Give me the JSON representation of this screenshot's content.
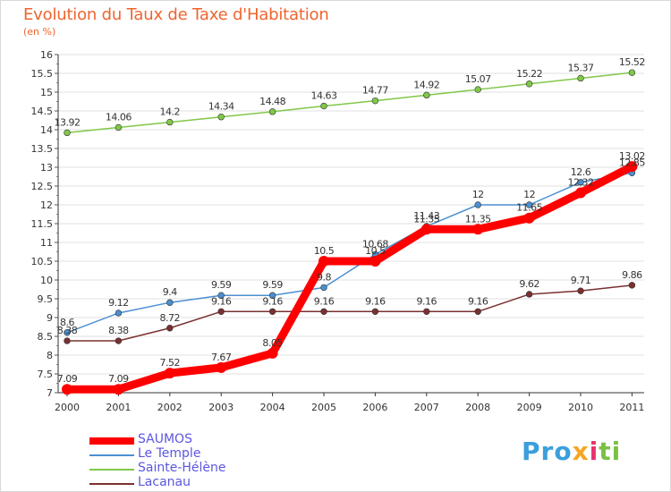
{
  "title": "Evolution du Taux de Taxe d'Habitation",
  "subtitle": "(en %)",
  "logo": {
    "p1": "Pro",
    "p2": "x",
    "p3": "i",
    "p4": "ti"
  },
  "chart_data": {
    "type": "line",
    "title": "Evolution du Taux de Taxe d'Habitation",
    "ylabel": "(en %)",
    "x": [
      "2000",
      "2001",
      "2002",
      "2003",
      "2004",
      "2005",
      "2006",
      "2007",
      "2008",
      "2009",
      "2010",
      "2011"
    ],
    "ylim": [
      7,
      16
    ],
    "yticks": [
      "7",
      "7.5",
      "8",
      "8.5",
      "9",
      "9.5",
      "10",
      "10.5",
      "11",
      "11.5",
      "12",
      "12.5",
      "13",
      "13.5",
      "14",
      "14.5",
      "15",
      "15.5",
      "16"
    ],
    "grid": "horizontal",
    "legend_position": "bottom-left",
    "series": [
      {
        "name": "SAUMOS",
        "color": "#ff0000",
        "values": [
          7.09,
          7.09,
          7.52,
          7.67,
          8.05,
          10.5,
          10.5,
          11.35,
          11.35,
          11.65,
          12.32,
          13.02
        ],
        "labels": [
          "7.09",
          "7.09",
          "7.52",
          "7.67",
          "8.05",
          "10.5",
          "10.5",
          "11.35",
          "11.35",
          "11.65",
          "12.32",
          "13.02"
        ]
      },
      {
        "name": "Le Temple",
        "color": "#4b8fd0",
        "values": [
          8.6,
          9.12,
          9.4,
          9.59,
          9.59,
          9.8,
          10.68,
          11.43,
          12,
          12,
          12.6,
          12.85
        ],
        "labels": [
          "8.6",
          "9.12",
          "9.4",
          "9.59",
          "9.59",
          "9.8",
          "10.68",
          "11.43",
          "12",
          "12",
          "12.6",
          "12.85"
        ]
      },
      {
        "name": "Sainte-Hélène",
        "color": "#80c848",
        "values": [
          13.92,
          14.06,
          14.2,
          14.34,
          14.48,
          14.63,
          14.77,
          14.92,
          15.07,
          15.22,
          15.37,
          15.52
        ],
        "labels": [
          "13.92",
          "14.06",
          "14.2",
          "14.34",
          "14.48",
          "14.63",
          "14.77",
          "14.92",
          "15.07",
          "15.22",
          "15.37",
          "15.52"
        ]
      },
      {
        "name": "Lacanau",
        "color": "#7a3030",
        "values": [
          8.38,
          8.38,
          8.72,
          9.16,
          9.16,
          9.16,
          9.16,
          9.16,
          9.16,
          9.62,
          9.71,
          9.86
        ],
        "labels": [
          "8.38",
          "8.38",
          "8.72",
          "9.16",
          "9.16",
          "9.16",
          "9.16",
          "9.16",
          "9.16",
          "9.62",
          "9.71",
          "9.86"
        ]
      }
    ]
  }
}
